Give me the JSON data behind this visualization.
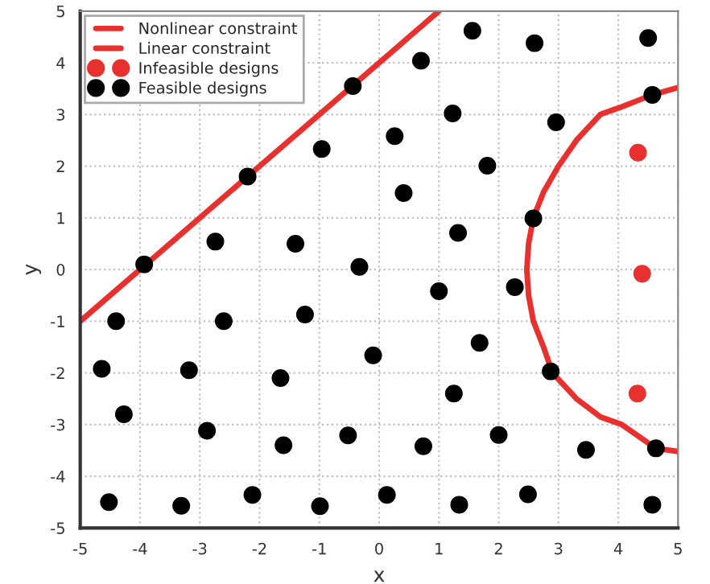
{
  "chart_data": {
    "type": "scatter",
    "xlabel": "x",
    "ylabel": "y",
    "xlim": [
      -5,
      5
    ],
    "ylim": [
      -5,
      5
    ],
    "xticks": [
      -5,
      -4,
      -3,
      -2,
      -1,
      0,
      1,
      2,
      3,
      4,
      5
    ],
    "yticks": [
      -5,
      -4,
      -3,
      -2,
      -1,
      0,
      1,
      2,
      3,
      4,
      5
    ],
    "grid": true,
    "legend": "top left",
    "series": [
      {
        "name": "Nonlinear constraint",
        "type": "line",
        "marker": "none",
        "color": "#e8312f",
        "x": [
          5,
          4.57,
          4.06,
          3.7,
          3.3,
          3.0,
          2.75,
          2.58,
          2.5,
          2.47,
          2.5,
          2.58,
          2.75,
          2.9,
          3.3,
          3.7,
          4.06,
          4.63,
          5
        ],
        "values": [
          3.52,
          3.38,
          3.15,
          3,
          2.5,
          2,
          1.5,
          1,
          0.5,
          0,
          -0.5,
          -1,
          -1.5,
          -2,
          -2.5,
          -2.85,
          -3,
          -3.46,
          -3.52
        ]
      },
      {
        "name": "Linear constraint",
        "type": "line",
        "marker": "none",
        "color": "#e8312f",
        "x": [
          -5,
          1
        ],
        "values": [
          -1,
          5
        ]
      },
      {
        "name": "Infeasible designs",
        "type": "scatter",
        "marker": "circle",
        "color": "#e8312f",
        "x": [
          4.33,
          4.4,
          4.32
        ],
        "values": [
          2.26,
          -0.08,
          -2.4
        ]
      },
      {
        "name": "Feasible designs",
        "type": "scatter",
        "marker": "circle",
        "color": "#000000",
        "x": [
          -3.93,
          -2.74,
          -2.2,
          -1.4,
          -0.96,
          -0.44,
          -0.33,
          1.56,
          2.6,
          4.5,
          0.7,
          4.57,
          1.23,
          2.96,
          0.26,
          1.81,
          0.41,
          2.58,
          1.32,
          -4.4,
          -2.6,
          -1.24,
          -4.64,
          -3.18,
          -1.65,
          -0.1,
          -4.27,
          -2.88,
          -1.6,
          -0.52,
          -4.52,
          -3.31,
          -2.12,
          -0.99,
          1.0,
          2.27,
          1.68,
          2.87,
          1.25,
          0.74,
          2.0,
          3.46,
          4.63,
          0.13,
          1.34,
          2.49,
          4.57
        ],
        "values": [
          0.1,
          0.54,
          1.8,
          0.5,
          2.33,
          3.55,
          0.05,
          4.62,
          4.38,
          4.48,
          4.04,
          3.38,
          3.02,
          2.85,
          2.58,
          2.01,
          1.48,
          0.99,
          0.71,
          -1.0,
          -1.0,
          -0.87,
          -1.92,
          -1.95,
          -2.1,
          -1.66,
          -2.8,
          -3.12,
          -3.4,
          -3.21,
          -4.5,
          -4.57,
          -4.36,
          -4.58,
          -0.42,
          -0.34,
          -1.42,
          -1.97,
          -2.4,
          -3.42,
          -3.2,
          -3.49,
          -3.46,
          -4.36,
          -4.55,
          -4.35,
          -4.55
        ]
      }
    ]
  }
}
